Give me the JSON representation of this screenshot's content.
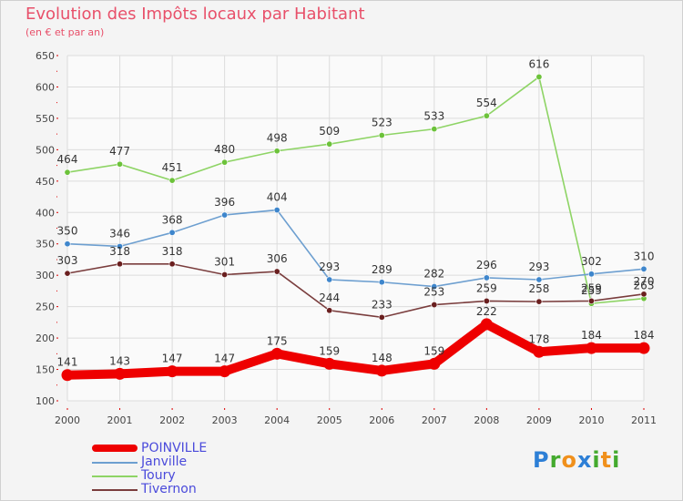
{
  "title": "Evolution des Impôts locaux par Habitant",
  "subtitle": "(en € et par an)",
  "logo": {
    "text": "Proxiti",
    "letters": [
      {
        "ch": "P",
        "color": "#2d7fd6"
      },
      {
        "ch": "r",
        "color": "#44aa2e"
      },
      {
        "ch": "o",
        "color": "#f0901c"
      },
      {
        "ch": "x",
        "color": "#2d7fd6"
      },
      {
        "ch": "i",
        "color": "#44aa2e"
      },
      {
        "ch": "t",
        "color": "#f0901c"
      },
      {
        "ch": "i",
        "color": "#44aa2e"
      }
    ]
  },
  "chart_data": {
    "type": "line",
    "title": "Evolution des Impôts locaux par Habitant",
    "subtitle": "(en € et par an)",
    "x": [
      "2000",
      "2001",
      "2002",
      "2003",
      "2004",
      "2005",
      "2006",
      "2007",
      "2008",
      "2009",
      "2010",
      "2011"
    ],
    "ylim": [
      100,
      650
    ],
    "yticks": [
      100,
      150,
      200,
      250,
      300,
      350,
      400,
      450,
      500,
      550,
      600,
      650
    ],
    "grid": true,
    "legend_position": "bottom-left",
    "series": [
      {
        "name": "Toury",
        "color": "#8ed465",
        "marker": "#6cc23a",
        "values": [
          464,
          477,
          451,
          480,
          498,
          509,
          523,
          533,
          554,
          616,
          255,
          263
        ],
        "labels": [
          "464",
          "477",
          "451",
          "480",
          "498",
          "509",
          "523",
          "533",
          "554",
          "616",
          "255",
          "263"
        ]
      },
      {
        "name": "Janville",
        "color": "#6d9fd0",
        "marker": "#3e86cc",
        "values": [
          350,
          346,
          368,
          396,
          404,
          293,
          289,
          282,
          296,
          293,
          302,
          310
        ],
        "labels": [
          "350",
          "346",
          "368",
          "396",
          "404",
          "293",
          "289",
          "282",
          "296",
          "293",
          "302",
          "310"
        ]
      },
      {
        "name": "Tivernon",
        "color": "#7a3d3d",
        "marker": "#6a1f1f",
        "values": [
          303,
          318,
          318,
          301,
          306,
          244,
          233,
          253,
          259,
          258,
          259,
          270
        ],
        "labels": [
          "303",
          "318",
          "318",
          "301",
          "306",
          "244",
          "233",
          "253",
          "259",
          "258",
          "259",
          "270"
        ]
      },
      {
        "name": "POINVILLE",
        "color": "#ee0000",
        "marker": "#ee0000",
        "thick": true,
        "values": [
          141,
          143,
          147,
          147,
          175,
          159,
          148,
          159,
          222,
          178,
          184,
          184
        ],
        "labels": [
          "141",
          "143",
          "147",
          "147",
          "175",
          "159",
          "148",
          "159",
          "222",
          "178",
          "184",
          "184"
        ]
      }
    ],
    "legend": [
      {
        "name": "POINVILLE",
        "color": "#ee0000",
        "thick": true
      },
      {
        "name": "Janville",
        "color": "#6d9fd0"
      },
      {
        "name": "Toury",
        "color": "#8ed465"
      },
      {
        "name": "Tivernon",
        "color": "#7a3d3d"
      }
    ]
  }
}
